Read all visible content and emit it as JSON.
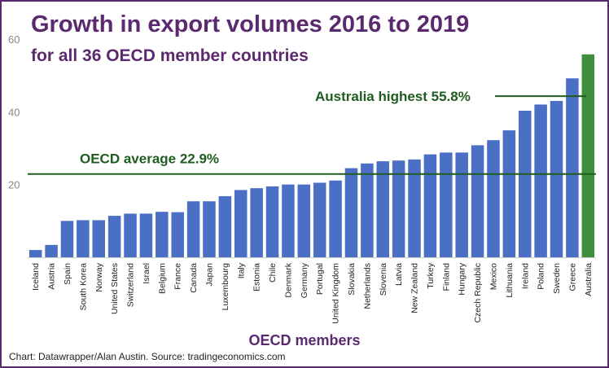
{
  "chart_data": {
    "type": "bar",
    "title": "Growth in export volumes 2016 to 2019",
    "subtitle": "for all 36 OECD member countries",
    "xlabel": "OECD members",
    "ylabel": "",
    "ylim": [
      0,
      60
    ],
    "yticks": [
      "60",
      "40",
      "20"
    ],
    "grid": false,
    "categories": [
      "Iceland",
      "Austria",
      "Spain",
      "South Korea",
      "Norway",
      "United States",
      "Switzerland",
      "Israel",
      "Belgium",
      "France",
      "Canada",
      "Japan",
      "Luxembourg",
      "Italy",
      "Estonia",
      "Chile",
      "Denmark",
      "Germany",
      "Portugal",
      "United Kingdom",
      "Slovakia",
      "Netherlands",
      "Slovenia",
      "Latvia",
      "New Zealand",
      "Turkey",
      "Finland",
      "Hungary",
      "Czech Republic",
      "Mexico",
      "Lithuania",
      "Ireland",
      "Poland",
      "Sweden",
      "Greece",
      "Australia"
    ],
    "values": [
      2.0,
      3.4,
      10.0,
      10.2,
      10.2,
      11.4,
      12.0,
      12.0,
      12.5,
      12.4,
      15.4,
      15.4,
      16.8,
      18.5,
      19.0,
      19.5,
      20.0,
      20.0,
      20.5,
      21.1,
      24.5,
      25.8,
      26.4,
      26.6,
      26.9,
      28.3,
      28.8,
      28.8,
      30.8,
      32.2,
      34.9,
      40.3,
      42.0,
      43.0,
      49.2,
      55.8
    ],
    "bar_color": "#4a6fc4",
    "highlight_color": "#3e8e3e",
    "highlight_category": "Australia",
    "annotations": [
      {
        "text": "OECD average 22.9%",
        "value": 22.9,
        "color": "#1f5c1f"
      },
      {
        "text": "Australia highest 55.8%",
        "value": 44.3,
        "color": "#1f5c1f"
      }
    ]
  },
  "credit": "Chart: Datawrapper/Alan Austin. Source: tradingeconomics.com"
}
